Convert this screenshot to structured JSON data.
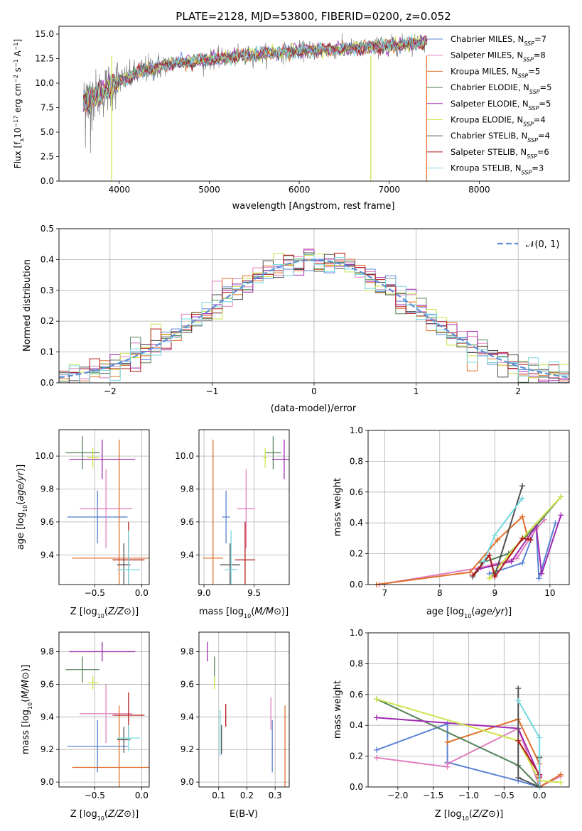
{
  "colors": {
    "chabrier_miles": "#5b83d6",
    "salpeter_miles": "#e07fbf",
    "kroupa_miles": "#e0702b",
    "chabrier_elodie": "#55835a",
    "salpeter_elodie": "#9f2ab1",
    "kroupa_elodie": "#cde44a",
    "chabrier_stelib": "#505050",
    "salpeter_stelib": "#b51818",
    "kroupa_stelib": "#74d8e0",
    "data_spectrum": "#808080",
    "normal_curve": "#5b8fd6"
  },
  "chart_data": [
    {
      "id": "spectrum",
      "type": "line",
      "title": "PLATE=2128, MJD=53800, FIBERID=0200, z=0.052",
      "xlabel": "wavelength [Angstrom, rest frame]",
      "ylabel": "Flux [f$_\\lambda$10$^{-17}$ erg cm$^{-2}$ s$^{-1}$ A$^{-1}$]",
      "ylabel_parts": [
        "Flux [f",
        "λ",
        "10",
        "−17",
        " erg cm",
        "−2",
        " s",
        "−1",
        " A",
        "−1",
        "]"
      ],
      "xlim": [
        3330,
        9000
      ],
      "ylim": [
        0,
        15.8
      ],
      "xticks": [
        4000,
        5000,
        6000,
        7000,
        8000
      ],
      "yticks": [
        0.0,
        2.5,
        5.0,
        7.5,
        10.0,
        12.5,
        15.0
      ],
      "ytick_labels": [
        "0.0",
        "2.5",
        "5.0",
        "7.5",
        "10.0",
        "12.5",
        "15.0"
      ],
      "continuum": [
        [
          3600,
          8.2
        ],
        [
          3800,
          9.0
        ],
        [
          3950,
          10.0
        ],
        [
          4100,
          10.6
        ],
        [
          4300,
          11.4
        ],
        [
          4600,
          12.0
        ],
        [
          5000,
          12.4
        ],
        [
          5500,
          12.9
        ],
        [
          6000,
          13.3
        ],
        [
          6500,
          13.5
        ],
        [
          7000,
          13.8
        ],
        [
          7400,
          14.2
        ]
      ],
      "legend": [
        {
          "label": "Chabrier MILES, N",
          "n": "=7",
          "color_key": "chabrier_miles"
        },
        {
          "label": "Salpeter MILES, N",
          "n": "=8",
          "color_key": "salpeter_miles"
        },
        {
          "label": "Kroupa MILES, N",
          "n": "=5",
          "color_key": "kroupa_miles"
        },
        {
          "label": "Chabrier ELODIE, N",
          "n": "=5",
          "color_key": "chabrier_elodie"
        },
        {
          "label": "Salpeter ELODIE, N",
          "n": "=5",
          "color_key": "salpeter_elodie"
        },
        {
          "label": "Kroupa ELODIE, N",
          "n": "=4",
          "color_key": "kroupa_elodie"
        },
        {
          "label": "Chabrier STELIB, N",
          "n": "=4",
          "color_key": "chabrier_stelib"
        },
        {
          "label": "Salpeter STELIB, N",
          "n": "=6",
          "color_key": "salpeter_stelib"
        },
        {
          "label": "Kroupa STELIB, N",
          "n": "=3",
          "color_key": "kroupa_stelib"
        }
      ],
      "legend_sub": "SSP",
      "legend_placement": "upper-right"
    },
    {
      "id": "residuals",
      "type": "histogram",
      "xlabel": "(data-model)/error",
      "ylabel": "Normed distribution",
      "xlim": [
        -2.5,
        2.5
      ],
      "ylim": [
        0,
        0.5
      ],
      "xticks": [
        -2,
        -1,
        0,
        1,
        2
      ],
      "xtick_labels": [
        "−2",
        "−1",
        "0",
        "1",
        "2"
      ],
      "yticks": [
        0.0,
        0.1,
        0.2,
        0.3,
        0.4,
        0.5
      ],
      "ytick_labels": [
        "0.0",
        "0.1",
        "0.2",
        "0.3",
        "0.4",
        "0.5"
      ],
      "grid": true,
      "legend": "N(0, 1)",
      "legend_placement": "upper-right",
      "bin_width": 0.1
    },
    {
      "id": "age-vs-Z",
      "type": "errorbar",
      "xlabel": "Z [log10(Z/Z⊙)]",
      "ylabel": "age  [log10(age/yr)]",
      "xlim": [
        -0.88,
        0.08
      ],
      "ylim": [
        9.22,
        10.16
      ],
      "xticks": [
        -0.5,
        0.0
      ],
      "xtick_labels": [
        "−0.5",
        "0.0"
      ],
      "yticks": [
        9.4,
        9.6,
        9.8,
        10.0
      ],
      "ytick_labels": [
        "9.4",
        "9.6",
        "9.8",
        "10.0"
      ],
      "points": [
        {
          "color_key": "chabrier_miles",
          "x": -0.47,
          "xerr": 0.32,
          "y": 9.63,
          "yerr": 0.16
        },
        {
          "color_key": "salpeter_miles",
          "x": -0.38,
          "xerr": 0.28,
          "y": 9.68,
          "yerr": 0.24
        },
        {
          "color_key": "kroupa_miles",
          "x": -0.24,
          "xerr": 0.5,
          "y": 9.38,
          "yerr": 0.72
        },
        {
          "color_key": "chabrier_elodie",
          "x": -0.63,
          "xerr": 0.18,
          "y": 10.02,
          "yerr": 0.1
        },
        {
          "color_key": "salpeter_elodie",
          "x": -0.42,
          "xerr": 0.35,
          "y": 9.98,
          "yerr": 0.12
        },
        {
          "color_key": "kroupa_elodie",
          "x": -0.52,
          "xerr": 0.06,
          "y": 9.99,
          "yerr": 0.06
        },
        {
          "color_key": "chabrier_stelib",
          "x": -0.19,
          "xerr": 0.07,
          "y": 9.34,
          "yerr": 0.13
        },
        {
          "color_key": "salpeter_stelib",
          "x": -0.14,
          "xerr": 0.17,
          "y": 9.37,
          "yerr": 0.23
        },
        {
          "color_key": "kroupa_stelib",
          "x": -0.14,
          "xerr": 0.12,
          "y": 9.31,
          "yerr": 0.24
        }
      ]
    },
    {
      "id": "age-vs-mass",
      "type": "errorbar",
      "xlabel": "mass [log10(M/M⊙)]",
      "ylabel": "",
      "xlim": [
        8.95,
        9.85
      ],
      "ylim": [
        9.22,
        10.16
      ],
      "xticks": [
        9.0,
        9.5
      ],
      "xtick_labels": [
        "9.0",
        "9.5"
      ],
      "yticks": [
        9.4,
        9.6,
        9.8,
        10.0
      ],
      "ytick_labels": [
        "9.4",
        "9.6",
        "9.8",
        "10.0"
      ],
      "points": [
        {
          "color_key": "chabrier_miles",
          "x": 9.22,
          "xerr": 0.04,
          "y": 9.63,
          "yerr": 0.16
        },
        {
          "color_key": "salpeter_miles",
          "x": 9.42,
          "xerr": 0.09,
          "y": 9.68,
          "yerr": 0.24
        },
        {
          "color_key": "kroupa_miles",
          "x": 9.09,
          "xerr": 0.1,
          "y": 9.38,
          "yerr": 0.72
        },
        {
          "color_key": "chabrier_elodie",
          "x": 9.69,
          "xerr": 0.08,
          "y": 10.02,
          "yerr": 0.1
        },
        {
          "color_key": "salpeter_elodie",
          "x": 9.8,
          "xerr": 0.12,
          "y": 9.98,
          "yerr": 0.12
        },
        {
          "color_key": "kroupa_elodie",
          "x": 9.61,
          "xerr": 0.02,
          "y": 9.99,
          "yerr": 0.06
        },
        {
          "color_key": "chabrier_stelib",
          "x": 9.26,
          "xerr": 0.1,
          "y": 9.34,
          "yerr": 0.13
        },
        {
          "color_key": "salpeter_stelib",
          "x": 9.41,
          "xerr": 0.1,
          "y": 9.37,
          "yerr": 0.23
        },
        {
          "color_key": "kroupa_stelib",
          "x": 9.27,
          "xerr": 0.06,
          "y": 9.31,
          "yerr": 0.24
        }
      ]
    },
    {
      "id": "mass-weight-vs-age",
      "type": "line",
      "xlabel": "age  [log10(age/yr)]",
      "ylabel": "mass weight",
      "xlim": [
        6.7,
        10.35
      ],
      "ylim": [
        0,
        1.0
      ],
      "xticks": [
        7,
        8,
        9,
        10
      ],
      "xtick_labels": [
        "7",
        "8",
        "9",
        "10"
      ],
      "yticks": [
        0.0,
        0.2,
        0.4,
        0.6,
        0.8,
        1.0
      ],
      "ytick_labels": [
        "0.0",
        "0.2",
        "0.4",
        "0.6",
        "0.8",
        "1.0"
      ],
      "series": [
        {
          "color_key": "chabrier_miles",
          "points": [
            [
              8.9,
              0.07
            ],
            [
              9.5,
              0.14
            ],
            [
              9.75,
              0.38
            ],
            [
              9.8,
              0.04
            ],
            [
              10.1,
              0.4
            ]
          ]
        },
        {
          "color_key": "salpeter_miles",
          "points": [
            [
              6.9,
              0.0
            ],
            [
              8.75,
              0.11
            ],
            [
              9.4,
              0.17
            ],
            [
              9.75,
              0.36
            ],
            [
              9.9,
              0.42
            ]
          ]
        },
        {
          "color_key": "kroupa_miles",
          "points": [
            [
              6.85,
              0.0
            ],
            [
              8.55,
              0.08
            ],
            [
              9.05,
              0.29
            ],
            [
              9.5,
              0.44
            ],
            [
              9.6,
              0.3
            ]
          ]
        },
        {
          "color_key": "chabrier_elodie",
          "points": [
            [
              8.75,
              0.14
            ],
            [
              9.25,
              0.2
            ],
            [
              9.75,
              0.38
            ],
            [
              10.2,
              0.57
            ]
          ]
        },
        {
          "color_key": "salpeter_elodie",
          "points": [
            [
              8.7,
              0.1
            ],
            [
              9.3,
              0.15
            ],
            [
              9.75,
              0.38
            ],
            [
              9.85,
              0.07
            ],
            [
              10.2,
              0.45
            ]
          ]
        },
        {
          "color_key": "kroupa_elodie",
          "points": [
            [
              8.9,
              0.04
            ],
            [
              9.5,
              0.3
            ],
            [
              10.2,
              0.57
            ]
          ]
        },
        {
          "color_key": "chabrier_stelib",
          "points": [
            [
              8.6,
              0.05
            ],
            [
              8.9,
              0.19
            ],
            [
              9.0,
              0.06
            ],
            [
              9.5,
              0.64
            ]
          ]
        },
        {
          "color_key": "salpeter_stelib",
          "points": [
            [
              8.6,
              0.06
            ],
            [
              8.9,
              0.19
            ],
            [
              9.0,
              0.05
            ],
            [
              9.5,
              0.3
            ],
            [
              9.65,
              0.29
            ]
          ]
        },
        {
          "color_key": "kroupa_stelib",
          "points": [
            [
              8.8,
              0.15
            ],
            [
              9.0,
              0.32
            ],
            [
              9.5,
              0.56
            ]
          ]
        }
      ]
    },
    {
      "id": "mass-vs-Z",
      "type": "errorbar",
      "xlabel": "Z [log10(Z/Z⊙)]",
      "ylabel": "mass [log10(M/M⊙)]",
      "xlim": [
        -0.88,
        0.08
      ],
      "ylim": [
        8.97,
        9.92
      ],
      "xticks": [
        -0.5,
        0.0
      ],
      "xtick_labels": [
        "−0.5",
        "0.0"
      ],
      "yticks": [
        9.0,
        9.2,
        9.4,
        9.6,
        9.8
      ],
      "ytick_labels": [
        "9.0",
        "9.2",
        "9.4",
        "9.6",
        "9.8"
      ],
      "points": [
        {
          "color_key": "chabrier_miles",
          "x": -0.47,
          "xerr": 0.32,
          "y": 9.22,
          "yerr": 0.16
        },
        {
          "color_key": "salpeter_miles",
          "x": -0.38,
          "xerr": 0.28,
          "y": 9.42,
          "yerr": 0.18
        },
        {
          "color_key": "kroupa_miles",
          "x": -0.24,
          "xerr": 0.5,
          "y": 9.09,
          "yerr": 0.38
        },
        {
          "color_key": "chabrier_elodie",
          "x": -0.63,
          "xerr": 0.18,
          "y": 9.69,
          "yerr": 0.08
        },
        {
          "color_key": "salpeter_elodie",
          "x": -0.42,
          "xerr": 0.35,
          "y": 9.8,
          "yerr": 0.06
        },
        {
          "color_key": "kroupa_elodie",
          "x": -0.52,
          "xerr": 0.06,
          "y": 9.61,
          "yerr": 0.04
        },
        {
          "color_key": "chabrier_stelib",
          "x": -0.19,
          "xerr": 0.07,
          "y": 9.26,
          "yerr": 0.08
        },
        {
          "color_key": "salpeter_stelib",
          "x": -0.14,
          "xerr": 0.17,
          "y": 9.41,
          "yerr": 0.14
        },
        {
          "color_key": "kroupa_stelib",
          "x": -0.14,
          "xerr": 0.12,
          "y": 9.27,
          "yerr": 0.08
        }
      ]
    },
    {
      "id": "mass-vs-EBV",
      "type": "errorbar",
      "xlabel": "E(B-V)",
      "ylabel": "",
      "xlim": [
        0.03,
        0.35
      ],
      "ylim": [
        8.97,
        9.92
      ],
      "xticks": [
        0.1,
        0.2,
        0.3
      ],
      "xtick_labels": [
        "0.1",
        "0.2",
        "0.3"
      ],
      "yticks": [
        9.0,
        9.2,
        9.4,
        9.6,
        9.8
      ],
      "ytick_labels": [
        "9.0",
        "9.2",
        "9.4",
        "9.6",
        "9.8"
      ],
      "points": [
        {
          "color_key": "chabrier_miles",
          "x": 0.29,
          "y": 9.22,
          "yerr": 0.16
        },
        {
          "color_key": "salpeter_miles",
          "x": 0.285,
          "y": 9.42,
          "yerr": 0.1
        },
        {
          "color_key": "kroupa_miles",
          "x": 0.335,
          "y": 9.09,
          "yerr": 0.38
        },
        {
          "color_key": "chabrier_elodie",
          "x": 0.085,
          "y": 9.69,
          "yerr": 0.08
        },
        {
          "color_key": "salpeter_elodie",
          "x": 0.06,
          "y": 9.8,
          "yerr": 0.06
        },
        {
          "color_key": "kroupa_elodie",
          "x": 0.085,
          "y": 9.61,
          "yerr": 0.04
        },
        {
          "color_key": "chabrier_stelib",
          "x": 0.11,
          "y": 9.26,
          "yerr": 0.09
        },
        {
          "color_key": "salpeter_stelib",
          "x": 0.125,
          "y": 9.41,
          "yerr": 0.07
        },
        {
          "color_key": "kroupa_stelib",
          "x": 0.105,
          "y": 9.3,
          "yerr": 0.14
        }
      ]
    },
    {
      "id": "mass-weight-vs-Z",
      "type": "line",
      "xlabel": "Z [log10(Z/Z⊙)]",
      "ylabel": "mass weight",
      "xlim": [
        -2.42,
        0.42
      ],
      "ylim": [
        0,
        1.0
      ],
      "xticks": [
        -2.0,
        -1.5,
        -1.0,
        -0.5,
        0.0
      ],
      "xtick_labels": [
        "−2.0",
        "−1.5",
        "−1.0",
        "−0.5",
        "0.0"
      ],
      "yticks": [
        0.0,
        0.2,
        0.4,
        0.6,
        0.8,
        1.0
      ],
      "ytick_labels": [
        "0.0",
        "0.2",
        "0.4",
        "0.6",
        "0.8",
        "1.0"
      ],
      "series": [
        {
          "color_key": "chabrier_miles",
          "points": [
            [
              -2.3,
              0.24
            ],
            [
              -1.3,
              0.41
            ],
            [
              -1.3,
              0.16
            ],
            [
              -0.3,
              0.04
            ],
            [
              0.0,
              0.0
            ]
          ]
        },
        {
          "color_key": "salpeter_miles",
          "points": [
            [
              -2.3,
              0.19
            ],
            [
              -1.3,
              0.13
            ],
            [
              -1.3,
              0.15
            ],
            [
              -0.3,
              0.38
            ],
            [
              0.0,
              0.0
            ],
            [
              0.3,
              0.07
            ]
          ]
        },
        {
          "color_key": "kroupa_miles",
          "points": [
            [
              -1.3,
              0.29
            ],
            [
              -0.3,
              0.44
            ],
            [
              0.0,
              0.15
            ],
            [
              0.0,
              0.0
            ],
            [
              0.3,
              0.08
            ]
          ]
        },
        {
          "color_key": "chabrier_elodie",
          "points": [
            [
              -2.3,
              0.57
            ],
            [
              -0.3,
              0.14
            ],
            [
              0.0,
              0.0
            ],
            [
              0.0,
              0.2
            ]
          ]
        },
        {
          "color_key": "salpeter_elodie",
          "points": [
            [
              -2.3,
              0.45
            ],
            [
              -0.3,
              0.38
            ],
            [
              0.0,
              0.07
            ],
            [
              0.0,
              0.0
            ]
          ]
        },
        {
          "color_key": "kroupa_elodie",
          "points": [
            [
              -2.3,
              0.57
            ],
            [
              -0.3,
              0.3
            ],
            [
              0.0,
              0.04
            ],
            [
              0.3,
              0.03
            ]
          ]
        },
        {
          "color_key": "chabrier_stelib",
          "points": [
            [
              -0.3,
              0.64
            ],
            [
              -0.3,
              0.06
            ],
            [
              0.0,
              0.0
            ],
            [
              0.0,
              0.19
            ]
          ]
        },
        {
          "color_key": "salpeter_stelib",
          "points": [
            [
              -0.3,
              0.3
            ],
            [
              0.0,
              0.08
            ],
            [
              0.0,
              0.0
            ],
            [
              0.0,
              0.06
            ]
          ]
        },
        {
          "color_key": "kroupa_stelib",
          "points": [
            [
              -0.3,
              0.56
            ],
            [
              0.0,
              0.32
            ],
            [
              0.0,
              0.0
            ]
          ]
        }
      ]
    }
  ]
}
